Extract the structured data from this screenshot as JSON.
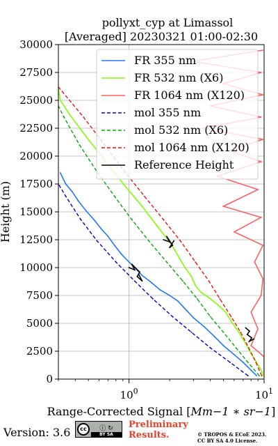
{
  "chart_data": {
    "type": "line",
    "title": "pollyxt_cyp at Limassol",
    "subtitle": "[Averaged] 20230321 01:00-02:30",
    "xlabel_prefix": "Range-Corrected Signal [",
    "xlabel_math": "Mm−1 ∗ sr−1",
    "xlabel_suffix": "]",
    "ylabel": "Height (m)",
    "xscale": "log",
    "xlim": [
      0.3,
      10
    ],
    "ylim": [
      0,
      30000
    ],
    "grid": true,
    "legend_position": "top-right",
    "yticks": [
      0,
      2500,
      5000,
      7500,
      10000,
      12500,
      15000,
      17500,
      20000,
      22500,
      25000,
      27500,
      30000
    ],
    "xticks": [
      {
        "value": 1,
        "base": "10",
        "exp": "0"
      },
      {
        "value": 10,
        "base": "10",
        "exp": "1"
      }
    ],
    "series": [
      {
        "name": "FR 355 nm",
        "color": "#1f77ff",
        "style": "solid",
        "points": [
          [
            8.8,
            300
          ],
          [
            8.0,
            800
          ],
          [
            7.0,
            1500
          ],
          [
            6.0,
            2200
          ],
          [
            5.0,
            3000
          ],
          [
            4.3,
            3800
          ],
          [
            3.6,
            4700
          ],
          [
            3.0,
            5500
          ],
          [
            2.6,
            6300
          ],
          [
            2.3,
            7000
          ],
          [
            2.0,
            7500
          ],
          [
            1.7,
            8000
          ],
          [
            1.45,
            8700
          ],
          [
            1.25,
            9300
          ],
          [
            1.1,
            10000
          ],
          [
            1.0,
            10500
          ],
          [
            0.88,
            11200
          ],
          [
            0.78,
            12000
          ],
          [
            0.7,
            12800
          ],
          [
            0.62,
            13500
          ],
          [
            0.55,
            14300
          ],
          [
            0.48,
            15100
          ],
          [
            0.42,
            16000
          ],
          [
            0.38,
            16800
          ],
          [
            0.34,
            17500
          ],
          [
            0.31,
            18500
          ]
        ]
      },
      {
        "name": "FR 532 nm (X6)",
        "color": "#7fff00",
        "style": "solid",
        "points": [
          [
            9.9,
            300
          ],
          [
            9.5,
            800
          ],
          [
            8.8,
            1500
          ],
          [
            8.0,
            2300
          ],
          [
            7.3,
            3200
          ],
          [
            6.5,
            4200
          ],
          [
            5.7,
            5200
          ],
          [
            5.2,
            6000
          ],
          [
            4.6,
            6600
          ],
          [
            4.0,
            7200
          ],
          [
            3.4,
            7800
          ],
          [
            3.1,
            8400
          ],
          [
            2.9,
            9200
          ],
          [
            2.6,
            10000
          ],
          [
            2.4,
            10700
          ],
          [
            2.2,
            11500
          ],
          [
            2.0,
            12300
          ],
          [
            1.8,
            13000
          ],
          [
            1.6,
            13800
          ],
          [
            1.4,
            14700
          ],
          [
            1.25,
            15500
          ],
          [
            1.1,
            16300
          ],
          [
            0.95,
            17200
          ],
          [
            0.82,
            18200
          ],
          [
            0.7,
            19200
          ],
          [
            0.6,
            20300
          ],
          [
            0.5,
            21500
          ],
          [
            0.42,
            22700
          ],
          [
            0.36,
            23800
          ],
          [
            0.31,
            25000
          ],
          [
            0.3,
            26000
          ]
        ]
      },
      {
        "name": "FR 1064 nm (X120)",
        "color": "#ff6060",
        "style": "solid",
        "points": [
          [
            10,
            500
          ],
          [
            10,
            2000
          ],
          [
            8.0,
            3000
          ],
          [
            9.0,
            4500
          ],
          [
            8.0,
            6000
          ],
          [
            9.5,
            7500
          ],
          [
            9.8,
            9000
          ],
          [
            8.5,
            10500
          ],
          [
            9.8,
            12000
          ],
          [
            6.0,
            13200
          ],
          [
            9.5,
            14500
          ],
          [
            5.0,
            15500
          ],
          [
            9.0,
            17000
          ],
          [
            4.5,
            18200
          ],
          [
            9.5,
            19500
          ],
          [
            5.5,
            20500
          ],
          [
            9.8,
            21500
          ],
          [
            3.5,
            22500
          ],
          [
            9.5,
            23500
          ],
          [
            4.0,
            24500
          ],
          [
            9.8,
            25500
          ],
          [
            5.0,
            26500
          ],
          [
            9.5,
            27500
          ],
          [
            3.0,
            28500
          ],
          [
            9.8,
            29500
          ]
        ]
      },
      {
        "name": "mol 355 nm",
        "color": "#0000cc",
        "style": "dashed",
        "points": [
          [
            7.6,
            300
          ],
          [
            5.6,
            1500
          ],
          [
            4.0,
            2800
          ],
          [
            2.9,
            4200
          ],
          [
            2.1,
            5600
          ],
          [
            1.5,
            7200
          ],
          [
            1.1,
            8800
          ],
          [
            0.8,
            10500
          ],
          [
            0.58,
            12400
          ],
          [
            0.44,
            14300
          ],
          [
            0.34,
            16400
          ],
          [
            0.3,
            17500
          ]
        ]
      },
      {
        "name": "mol 532 nm (X6)",
        "color": "#00aa00",
        "style": "dashed",
        "points": [
          [
            9.2,
            300
          ],
          [
            7.6,
            1500
          ],
          [
            6.2,
            2800
          ],
          [
            5.0,
            4200
          ],
          [
            4.0,
            5600
          ],
          [
            3.2,
            7200
          ],
          [
            2.5,
            8800
          ],
          [
            1.9,
            10500
          ],
          [
            1.4,
            12400
          ],
          [
            1.05,
            14300
          ],
          [
            0.78,
            16400
          ],
          [
            0.58,
            18600
          ],
          [
            0.43,
            21000
          ],
          [
            0.33,
            23500
          ],
          [
            0.3,
            24500
          ]
        ]
      },
      {
        "name": "mol 1064 nm (X120)",
        "color": "#ee1111",
        "style": "dashed",
        "points": [
          [
            9.6,
            300
          ],
          [
            8.7,
            1500
          ],
          [
            7.7,
            2800
          ],
          [
            6.7,
            4200
          ],
          [
            5.7,
            5600
          ],
          [
            4.7,
            7200
          ],
          [
            3.9,
            8800
          ],
          [
            3.1,
            10500
          ],
          [
            2.4,
            12400
          ],
          [
            1.8,
            14300
          ],
          [
            1.3,
            16400
          ],
          [
            0.93,
            18600
          ],
          [
            0.66,
            21000
          ],
          [
            0.46,
            23500
          ],
          [
            0.32,
            25800
          ],
          [
            0.3,
            26200
          ]
        ]
      },
      {
        "name": "Reference Height",
        "color": "#000000",
        "style": "solid",
        "segments": [
          {
            "points": [
              [
                1.0,
                10000
              ],
              [
                1.1,
                9800
              ],
              [
                1.05,
                10300
              ],
              [
                1.2,
                9600
              ],
              [
                1.15,
                9200
              ],
              [
                1.25,
                8800
              ],
              [
                1.18,
                9400
              ]
            ]
          },
          {
            "points": [
              [
                1.8,
                12500
              ],
              [
                2.0,
                12300
              ],
              [
                1.9,
                12800
              ],
              [
                2.1,
                12000
              ],
              [
                2.0,
                11800
              ],
              [
                2.15,
                12400
              ]
            ]
          },
          {
            "points": [
              [
                7.3,
                4600
              ],
              [
                7.8,
                4300
              ],
              [
                7.5,
                4000
              ],
              [
                8.1,
                3700
              ],
              [
                7.8,
                3400
              ],
              [
                8.4,
                3600
              ]
            ]
          }
        ]
      }
    ]
  },
  "footer": {
    "version": "Version: 3.6",
    "cc_text": "cc",
    "cc_icons": "ⓘ ↻",
    "cc_bar": "BY    SA",
    "preliminary_line1": "Preliminary",
    "preliminary_line2": "Results.",
    "copyright_line1": "© TROPOS & ECoE 2023.",
    "copyright_line2": "CC BY SA 4.0 License."
  }
}
